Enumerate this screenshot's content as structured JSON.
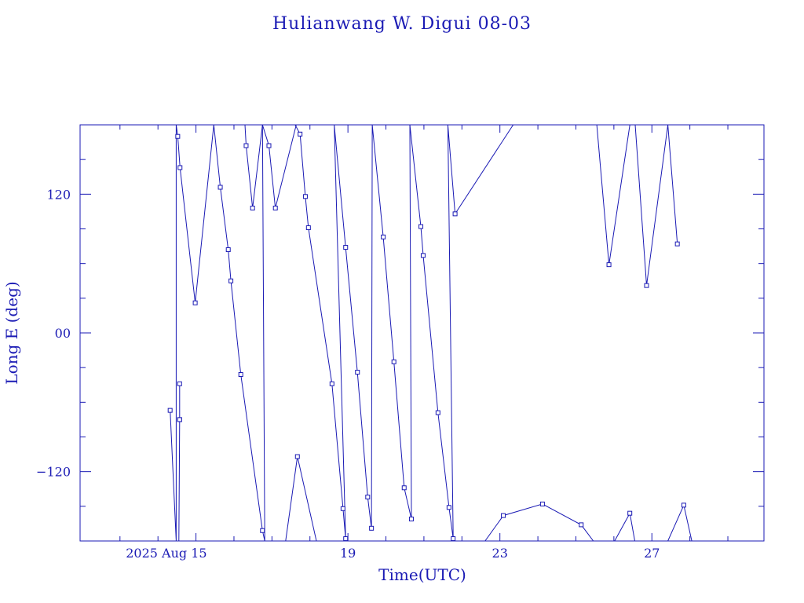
{
  "chart_data": {
    "type": "line",
    "title": "Hulianwang W. Digui 08-03",
    "xlabel": "Time(UTC)",
    "ylabel": "Long E (deg)",
    "x_unit": "days (UTC), August 2025",
    "xlim": [
      11.95,
      29.95
    ],
    "ylim": [
      -180,
      180
    ],
    "x_tick_labels": [
      {
        "x": 15,
        "label": "2025 Aug 15"
      },
      {
        "x": 19,
        "label": "19"
      },
      {
        "x": 23,
        "label": "23"
      },
      {
        "x": 27,
        "label": "27"
      }
    ],
    "y_tick_labels": [
      {
        "y": 120,
        "label": "120"
      },
      {
        "y": 0,
        "label": "00"
      },
      {
        "y": -120,
        "label": "−120"
      }
    ],
    "color": "#1a1ab4",
    "marker": "square",
    "series": [
      {
        "points": [
          [
            14.32,
            -67
          ],
          [
            14.48,
            -180
          ],
          [
            14.48,
            180
          ],
          [
            14.52,
            170
          ],
          [
            14.58,
            143
          ],
          [
            14.98,
            26
          ],
          [
            15.47,
            180
          ],
          [
            15.64,
            126
          ],
          [
            15.85,
            72
          ],
          [
            15.92,
            45
          ],
          [
            16.18,
            -36
          ],
          [
            16.75,
            -171
          ],
          [
            16.81,
            -180
          ],
          [
            16.75,
            180
          ],
          [
            16.92,
            162
          ],
          [
            17.09,
            108
          ],
          [
            17.64,
            180
          ],
          [
            17.61,
            180
          ],
          [
            17.74,
            172
          ],
          [
            17.88,
            118
          ],
          [
            17.96,
            91
          ],
          [
            18.58,
            -44
          ],
          [
            18.87,
            -152
          ],
          [
            18.94,
            -178
          ],
          [
            18.64,
            180
          ],
          [
            18.94,
            74
          ],
          [
            19.25,
            -34
          ],
          [
            19.52,
            -142
          ],
          [
            19.62,
            -169
          ],
          [
            19.64,
            180
          ],
          [
            19.93,
            83
          ],
          [
            20.21,
            -25
          ],
          [
            20.48,
            -134
          ],
          [
            20.67,
            -161
          ],
          [
            20.63,
            180
          ],
          [
            20.92,
            92
          ],
          [
            20.98,
            67
          ],
          [
            21.37,
            -69
          ],
          [
            21.66,
            -151
          ],
          [
            21.77,
            -178
          ],
          [
            21.63,
            180
          ],
          [
            21.82,
            103
          ],
          [
            23.35,
            180
          ]
        ]
      },
      {
        "points": [
          [
            14.57,
            -44
          ],
          [
            14.57,
            -75
          ],
          [
            14.55,
            -180
          ],
          [
            14.57,
            -75
          ]
        ]
      },
      {
        "points": [
          [
            16.29,
            180
          ],
          [
            16.32,
            162
          ],
          [
            16.49,
            108
          ],
          [
            16.75,
            180
          ]
        ]
      },
      {
        "points": [
          [
            17.36,
            -180
          ],
          [
            17.67,
            -107
          ],
          [
            18.17,
            -180
          ]
        ]
      },
      {
        "points": [
          [
            22.61,
            -180
          ],
          [
            23.09,
            -158
          ],
          [
            24.12,
            -148
          ],
          [
            25.14,
            -166
          ],
          [
            25.46,
            -180
          ]
        ]
      },
      {
        "points": [
          [
            25.55,
            180
          ],
          [
            25.87,
            59
          ],
          [
            26.42,
            180
          ]
        ]
      },
      {
        "points": [
          [
            26.02,
            -180
          ],
          [
            26.42,
            -156
          ],
          [
            26.55,
            -180
          ]
        ]
      },
      {
        "points": [
          [
            26.56,
            180
          ],
          [
            26.86,
            41
          ],
          [
            27.42,
            180
          ],
          [
            27.67,
            77
          ]
        ]
      },
      {
        "points": [
          [
            27.42,
            -180
          ],
          [
            27.84,
            -149
          ],
          [
            28.05,
            -180
          ]
        ]
      }
    ]
  }
}
